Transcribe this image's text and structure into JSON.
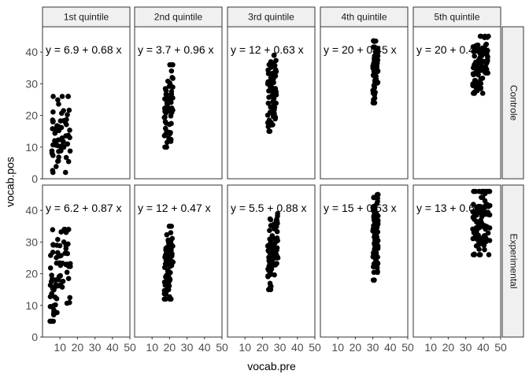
{
  "chart_data": {
    "type": "scatter",
    "xlabel": "vocab.pre",
    "ylabel": "vocab.pos",
    "xlim": [
      0,
      50
    ],
    "ylim": [
      0,
      48
    ],
    "x_ticks": [
      "10",
      "20",
      "30",
      "40",
      "50"
    ],
    "y_ticks": [
      "0",
      "10",
      "20",
      "30",
      "40"
    ],
    "columns": [
      "1st quintile",
      "2nd quintile",
      "3rd quintile",
      "4th quintile",
      "5th quintile"
    ],
    "rows": [
      "Controle",
      "Experimental"
    ],
    "point_color": "#000000",
    "strip_color": "#f0f0f0",
    "panels": [
      {
        "row": 0,
        "col": 0,
        "equation": "y = 6.9 + 0.68 x",
        "x_range": [
          5,
          16
        ],
        "y_range": [
          2,
          26
        ],
        "n": 60,
        "seed": 11
      },
      {
        "row": 0,
        "col": 1,
        "equation": "y = 3.7 + 0.96 x",
        "x_range": [
          17,
          22
        ],
        "y_range": [
          10,
          36
        ],
        "n": 60,
        "seed": 12
      },
      {
        "row": 0,
        "col": 2,
        "equation": "y = 12 + 0.63 x",
        "x_range": [
          23,
          28
        ],
        "y_range": [
          15,
          39
        ],
        "n": 80,
        "seed": 13
      },
      {
        "row": 0,
        "col": 3,
        "equation": "y = 20 + 0.45 x",
        "x_range": [
          30,
          33
        ],
        "y_range": [
          24,
          44
        ],
        "n": 70,
        "seed": 14
      },
      {
        "row": 0,
        "col": 4,
        "equation": "y = 20 + 0.45 x",
        "x_range": [
          34,
          43
        ],
        "y_range": [
          27,
          45
        ],
        "n": 90,
        "seed": 15
      },
      {
        "row": 1,
        "col": 0,
        "equation": "y = 6.2 + 0.87 x",
        "x_range": [
          4,
          16
        ],
        "y_range": [
          5,
          34
        ],
        "n": 80,
        "seed": 21
      },
      {
        "row": 1,
        "col": 1,
        "equation": "y = 12 + 0.47 x",
        "x_range": [
          17,
          22
        ],
        "y_range": [
          12,
          35
        ],
        "n": 70,
        "seed": 22
      },
      {
        "row": 1,
        "col": 2,
        "equation": "y = 5.5 + 0.88 x",
        "x_range": [
          23,
          29
        ],
        "y_range": [
          15,
          39
        ],
        "n": 90,
        "seed": 23
      },
      {
        "row": 1,
        "col": 3,
        "equation": "y = 15 + 0.53 x",
        "x_range": [
          30,
          33
        ],
        "y_range": [
          18,
          45
        ],
        "n": 90,
        "seed": 24
      },
      {
        "row": 1,
        "col": 4,
        "equation": "y = 13 + 0.6",
        "x_range": [
          34,
          44
        ],
        "y_range": [
          26,
          46
        ],
        "n": 100,
        "seed": 25
      }
    ]
  }
}
